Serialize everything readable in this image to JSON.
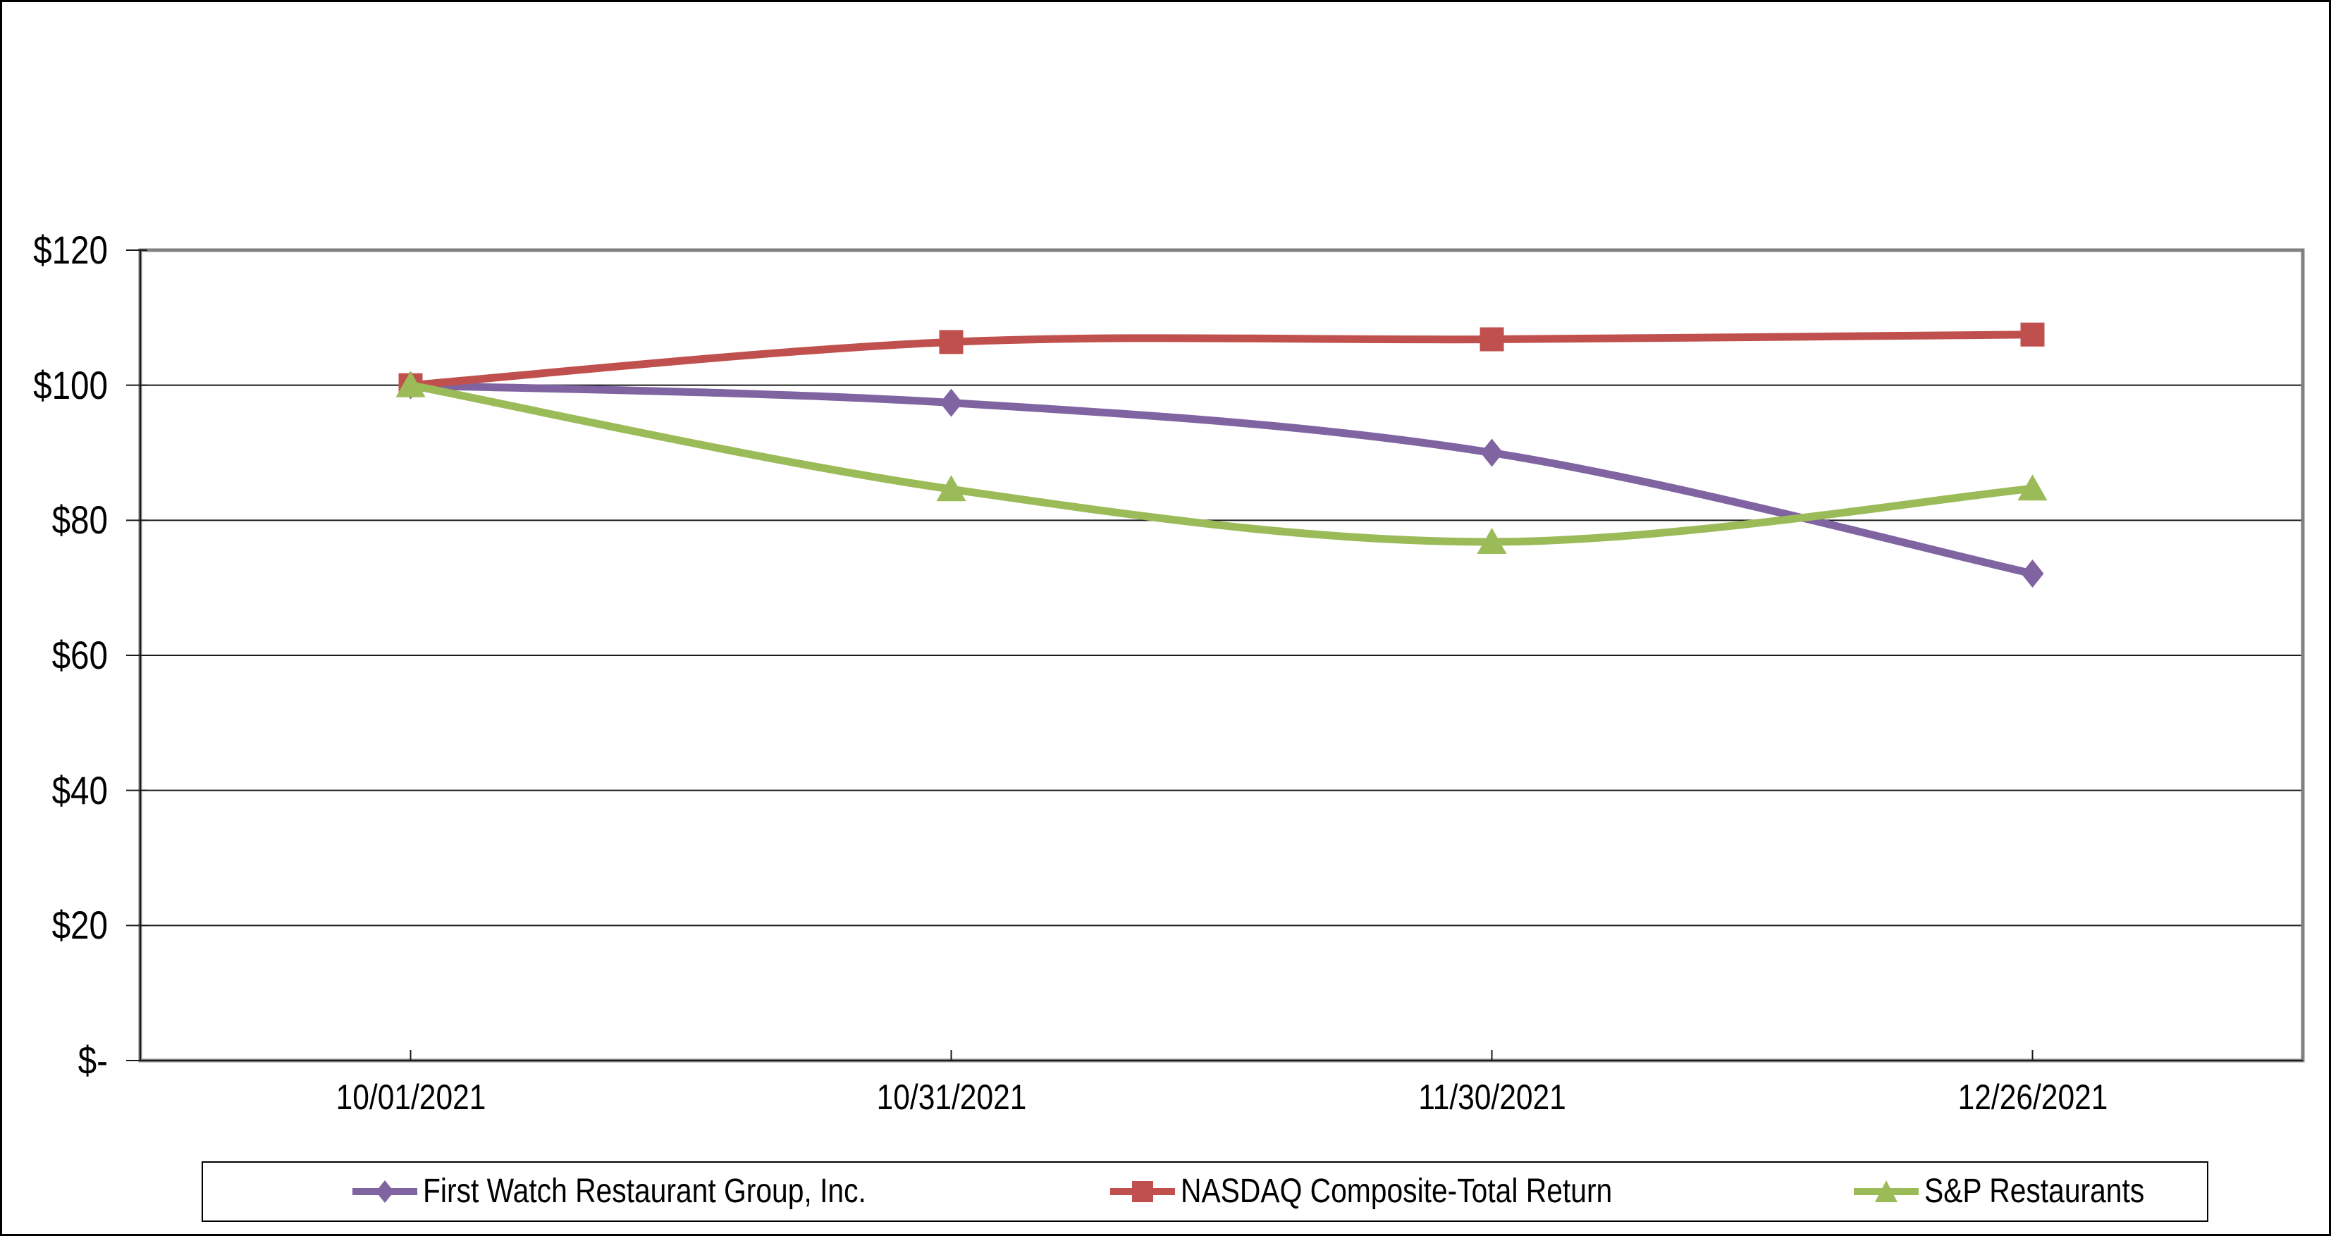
{
  "figure": {
    "background_color": "#FFFFFF",
    "outer_border_color": "#000000",
    "plot_border_color": "#808080",
    "gridline_color": "#1a1a1a",
    "tick_color": "#1a1a1a",
    "legend_border_color": "#000000"
  },
  "chart_data": {
    "type": "line",
    "title": "",
    "xlabel": "",
    "ylabel": "",
    "categories": [
      "10/01/2021",
      "10/31/2021",
      "11/30/2021",
      "12/26/2021"
    ],
    "series": [
      {
        "name": "First Watch Restaurant Group, Inc.",
        "color": "#8064A2",
        "marker": "diamond",
        "values": [
          100,
          97.4,
          90,
          72.1
        ]
      },
      {
        "name": "NASDAQ Composite-Total Return",
        "color": "#C0504D",
        "marker": "square",
        "values": [
          100,
          106.4,
          106.8,
          107.5
        ]
      },
      {
        "name": "S&P Restaurants",
        "color": "#9BBB59",
        "marker": "triangle",
        "values": [
          100,
          84.6,
          76.8,
          84.7
        ]
      }
    ],
    "ylim": [
      0,
      120
    ],
    "y_ticks": {
      "values": [
        0,
        20,
        40,
        60,
        80,
        100,
        120
      ],
      "labels": [
        "$-",
        "$20",
        "$40",
        "$60",
        "$80",
        "$100",
        "$120"
      ]
    },
    "grid": true,
    "line_smoothing": true,
    "legend_position": "bottom"
  }
}
